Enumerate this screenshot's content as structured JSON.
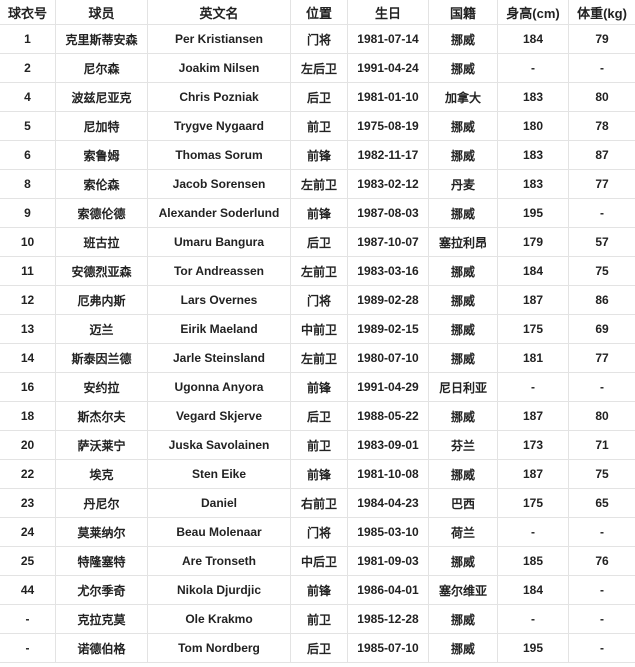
{
  "headers": [
    "球衣号",
    "球员",
    "英文名",
    "位置",
    "生日",
    "国籍",
    "身高(cm)",
    "体重(kg)"
  ],
  "rows": [
    [
      "1",
      "克里斯蒂安森",
      "Per Kristiansen",
      "门将",
      "1981-07-14",
      "挪威",
      "184",
      "79"
    ],
    [
      "2",
      "尼尔森",
      "Joakim Nilsen",
      "左后卫",
      "1991-04-24",
      "挪威",
      "-",
      "-"
    ],
    [
      "4",
      "波兹尼亚克",
      "Chris Pozniak",
      "后卫",
      "1981-01-10",
      "加拿大",
      "183",
      "80"
    ],
    [
      "5",
      "尼加特",
      "Trygve Nygaard",
      "前卫",
      "1975-08-19",
      "挪威",
      "180",
      "78"
    ],
    [
      "6",
      "索鲁姆",
      "Thomas Sorum",
      "前锋",
      "1982-11-17",
      "挪威",
      "183",
      "87"
    ],
    [
      "8",
      "索伦森",
      "Jacob Sorensen",
      "左前卫",
      "1983-02-12",
      "丹麦",
      "183",
      "77"
    ],
    [
      "9",
      "索德伦德",
      "Alexander Soderlund",
      "前锋",
      "1987-08-03",
      "挪威",
      "195",
      "-"
    ],
    [
      "10",
      "班古拉",
      "Umaru Bangura",
      "后卫",
      "1987-10-07",
      "塞拉利昂",
      "179",
      "57"
    ],
    [
      "11",
      "安德烈亚森",
      "Tor Andreassen",
      "左前卫",
      "1983-03-16",
      "挪威",
      "184",
      "75"
    ],
    [
      "12",
      "厄弗内斯",
      "Lars Overnes",
      "门将",
      "1989-02-28",
      "挪威",
      "187",
      "86"
    ],
    [
      "13",
      "迈兰",
      "Eirik Maeland",
      "中前卫",
      "1989-02-15",
      "挪威",
      "175",
      "69"
    ],
    [
      "14",
      "斯泰因兰德",
      "Jarle Steinsland",
      "左前卫",
      "1980-07-10",
      "挪威",
      "181",
      "77"
    ],
    [
      "16",
      "安约拉",
      "Ugonna Anyora",
      "前锋",
      "1991-04-29",
      "尼日利亚",
      "-",
      "-"
    ],
    [
      "18",
      "斯杰尔夫",
      "Vegard Skjerve",
      "后卫",
      "1988-05-22",
      "挪威",
      "187",
      "80"
    ],
    [
      "20",
      "萨沃莱宁",
      "Juska Savolainen",
      "前卫",
      "1983-09-01",
      "芬兰",
      "173",
      "71"
    ],
    [
      "22",
      "埃克",
      "Sten Eike",
      "前锋",
      "1981-10-08",
      "挪威",
      "187",
      "75"
    ],
    [
      "23",
      "丹尼尔",
      "Daniel",
      "右前卫",
      "1984-04-23",
      "巴西",
      "175",
      "65"
    ],
    [
      "24",
      "莫莱纳尔",
      "Beau Molenaar",
      "门将",
      "1985-03-10",
      "荷兰",
      "-",
      "-"
    ],
    [
      "25",
      "特隆塞特",
      "Are Tronseth",
      "中后卫",
      "1981-09-03",
      "挪威",
      "185",
      "76"
    ],
    [
      "44",
      "尤尔季奇",
      "Nikola Djurdjic",
      "前锋",
      "1986-04-01",
      "塞尔维亚",
      "184",
      "-"
    ],
    [
      "-",
      "克拉克莫",
      "Ole Krakmo",
      "前卫",
      "1985-12-28",
      "挪威",
      "-",
      "-"
    ],
    [
      "-",
      "诺德伯格",
      "Tom Nordberg",
      "后卫",
      "1985-07-10",
      "挪威",
      "195",
      "-"
    ]
  ]
}
